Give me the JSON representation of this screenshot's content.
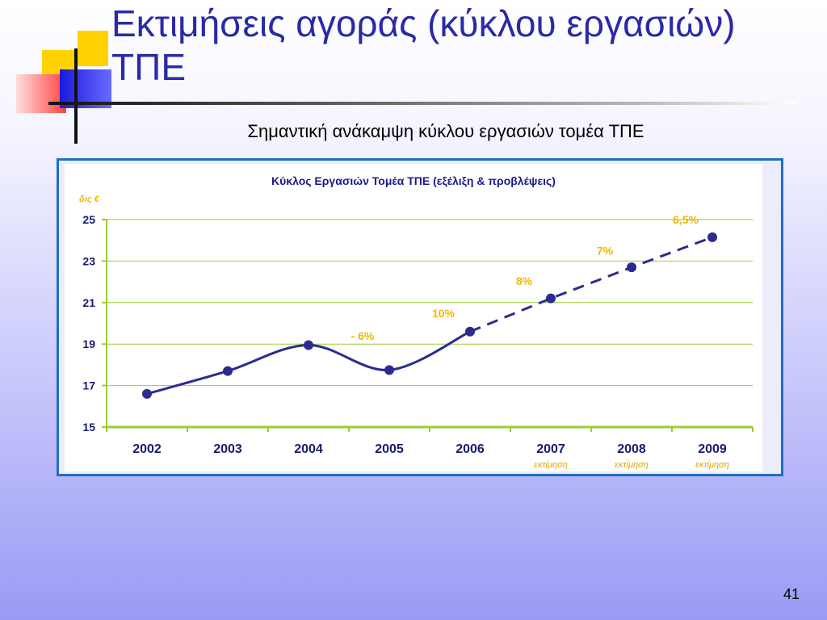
{
  "slide": {
    "title": "Εκτιμήσεις αγοράς (κύκλου εργασιών) ΤΠΕ",
    "subtitle": "Σημαντική ανάκαμψη κύκλου εργασιών τομέα ΤΠΕ",
    "page_number": "41"
  },
  "colors": {
    "title": "#2a2aa6",
    "series": "#2b2b8f",
    "grid": "#9acd32",
    "labels": "#f0b800",
    "frame": "#1e6fc1"
  },
  "chart_data": {
    "type": "line",
    "title": "Κύκλος Εργασιών Τομέα ΤΠΕ (εξέλιξη & προβλέψεις)",
    "ylabel": "δις €",
    "xlabel": "",
    "categories": [
      "2002",
      "2003",
      "2004",
      "2005",
      "2006",
      "2007",
      "2008",
      "2009"
    ],
    "category_notes": [
      "",
      "",
      "",
      "",
      "",
      "εκτίμηση",
      "εκτίμηση",
      "εκτίμηση"
    ],
    "series": [
      {
        "values": [
          16.6,
          17.7,
          18.95,
          17.75,
          19.6,
          21.2,
          22.7,
          24.15
        ],
        "dashed_from_index": 4
      }
    ],
    "data_labels": [
      {
        "text": "- 6%",
        "category": "2005",
        "y": 19.2
      },
      {
        "text": "10%",
        "category": "2006",
        "y": 20.3
      },
      {
        "text": "8%",
        "category": "2007",
        "y": 21.85
      },
      {
        "text": "7%",
        "category": "2008",
        "y": 23.3
      },
      {
        "text": "6,5%",
        "category": "2009",
        "y": 24.8
      }
    ],
    "ylim": [
      15,
      25
    ],
    "yticks": [
      "15",
      "17",
      "19",
      "21",
      "23",
      "25"
    ],
    "grid": true,
    "legend": "none"
  }
}
